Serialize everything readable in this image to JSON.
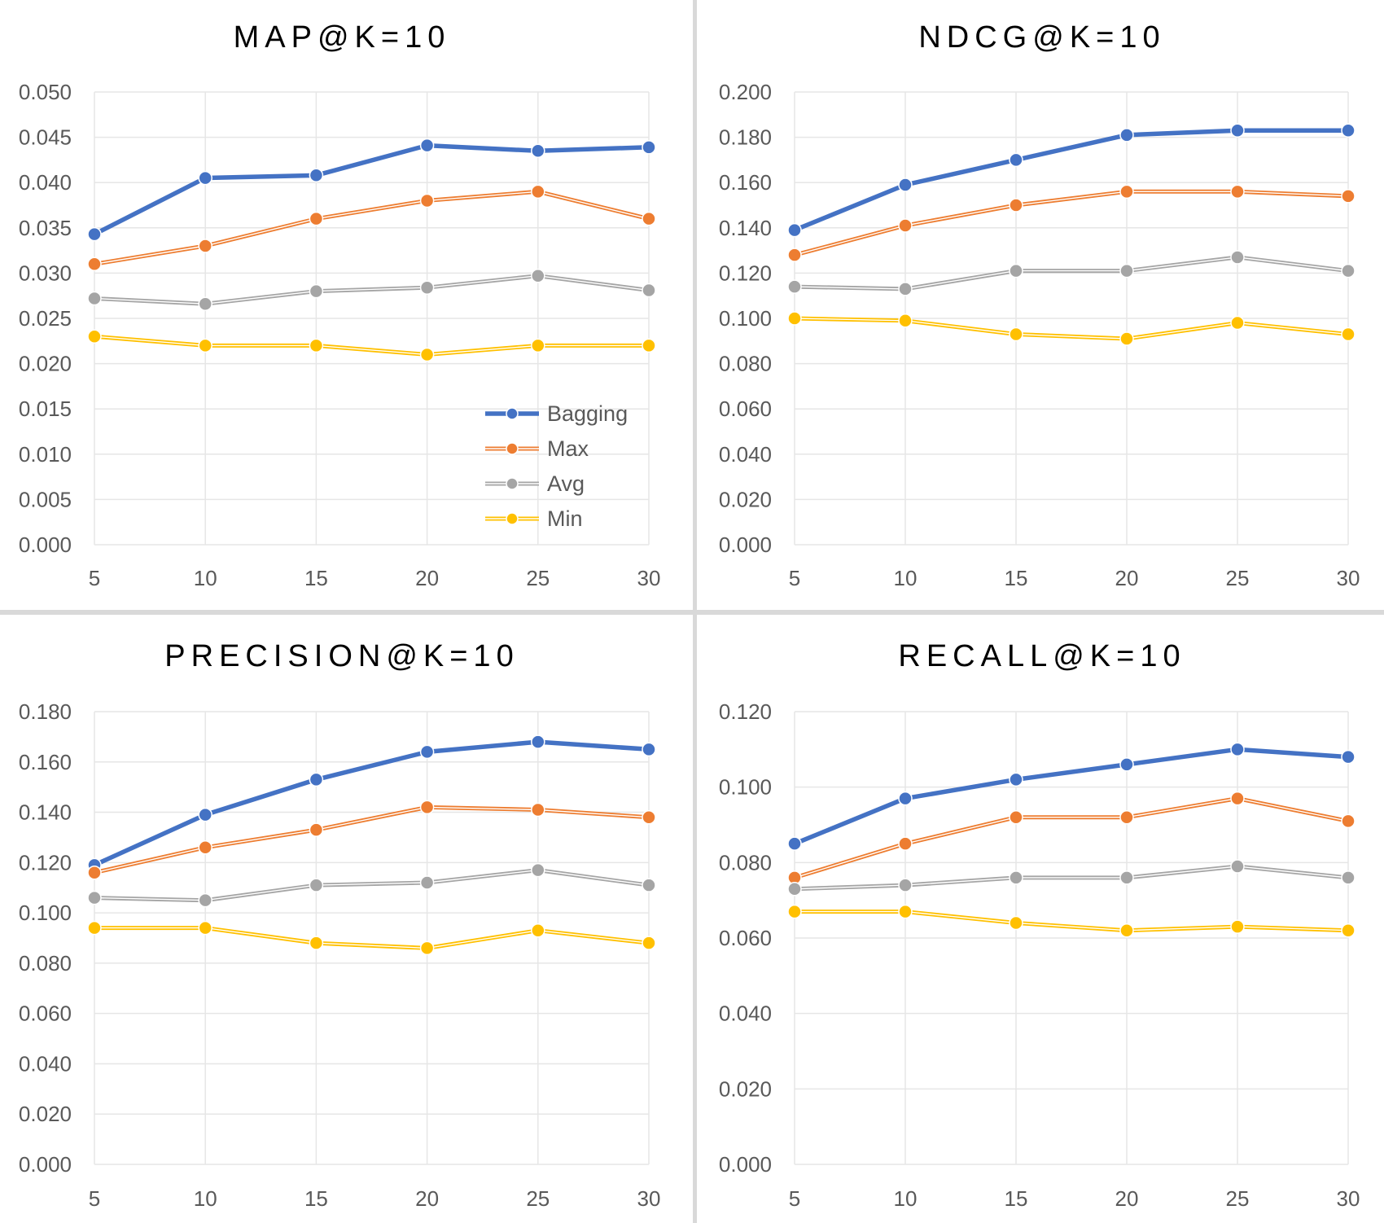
{
  "colors": {
    "Bagging": "#4472c4",
    "Max": "#ed7d31",
    "Avg": "#a5a5a5",
    "Min": "#ffc000",
    "grid": "#e6e6e6",
    "divider": "#d9d9d9"
  },
  "chart_data": [
    {
      "type": "line",
      "title": "MAP@K=10",
      "x": [
        5,
        10,
        15,
        20,
        25,
        30
      ],
      "xticks": [
        "5",
        "10",
        "15",
        "20",
        "25",
        "30"
      ],
      "ylim": [
        0,
        0.05
      ],
      "yticks": [
        "0.000",
        "0.005",
        "0.010",
        "0.015",
        "0.020",
        "0.025",
        "0.030",
        "0.035",
        "0.040",
        "0.045",
        "0.050"
      ],
      "legend": {
        "position": "bottom-right",
        "entries": [
          "Bagging",
          "Max",
          "Avg",
          "Min"
        ]
      },
      "series": [
        {
          "name": "Bagging",
          "values": [
            0.0343,
            0.0405,
            0.0408,
            0.0441,
            0.0435,
            0.0439
          ]
        },
        {
          "name": "Max",
          "values": [
            0.031,
            0.033,
            0.036,
            0.038,
            0.039,
            0.036
          ]
        },
        {
          "name": "Avg",
          "values": [
            0.0272,
            0.0266,
            0.028,
            0.0284,
            0.0297,
            0.0281
          ]
        },
        {
          "name": "Min",
          "values": [
            0.023,
            0.022,
            0.022,
            0.021,
            0.022,
            0.022
          ]
        }
      ]
    },
    {
      "type": "line",
      "title": "NDCG@K=10",
      "x": [
        5,
        10,
        15,
        20,
        25,
        30
      ],
      "xticks": [
        "5",
        "10",
        "15",
        "20",
        "25",
        "30"
      ],
      "ylim": [
        0,
        0.2
      ],
      "yticks": [
        "0.000",
        "0.020",
        "0.040",
        "0.060",
        "0.080",
        "0.100",
        "0.120",
        "0.140",
        "0.160",
        "0.180",
        "0.200"
      ],
      "series": [
        {
          "name": "Bagging",
          "values": [
            0.139,
            0.159,
            0.17,
            0.181,
            0.183,
            0.183
          ]
        },
        {
          "name": "Max",
          "values": [
            0.128,
            0.141,
            0.15,
            0.156,
            0.156,
            0.154
          ]
        },
        {
          "name": "Avg",
          "values": [
            0.114,
            0.113,
            0.121,
            0.121,
            0.127,
            0.121
          ]
        },
        {
          "name": "Min",
          "values": [
            0.1,
            0.099,
            0.093,
            0.091,
            0.098,
            0.093
          ]
        }
      ]
    },
    {
      "type": "line",
      "title": "PRECISION@K=10",
      "x": [
        5,
        10,
        15,
        20,
        25,
        30
      ],
      "xticks": [
        "5",
        "10",
        "15",
        "20",
        "25",
        "30"
      ],
      "ylim": [
        0,
        0.18
      ],
      "yticks": [
        "0.000",
        "0.020",
        "0.040",
        "0.060",
        "0.080",
        "0.100",
        "0.120",
        "0.140",
        "0.160",
        "0.180"
      ],
      "series": [
        {
          "name": "Bagging",
          "values": [
            0.119,
            0.139,
            0.153,
            0.164,
            0.168,
            0.165
          ]
        },
        {
          "name": "Max",
          "values": [
            0.116,
            0.126,
            0.133,
            0.142,
            0.141,
            0.138
          ]
        },
        {
          "name": "Avg",
          "values": [
            0.106,
            0.105,
            0.111,
            0.112,
            0.117,
            0.111
          ]
        },
        {
          "name": "Min",
          "values": [
            0.094,
            0.094,
            0.088,
            0.086,
            0.093,
            0.088
          ]
        }
      ]
    },
    {
      "type": "line",
      "title": "RECALL@K=10",
      "x": [
        5,
        10,
        15,
        20,
        25,
        30
      ],
      "xticks": [
        "5",
        "10",
        "15",
        "20",
        "25",
        "30"
      ],
      "ylim": [
        0,
        0.12
      ],
      "yticks": [
        "0.000",
        "0.020",
        "0.040",
        "0.060",
        "0.080",
        "0.100",
        "0.120"
      ],
      "series": [
        {
          "name": "Bagging",
          "values": [
            0.085,
            0.097,
            0.102,
            0.106,
            0.11,
            0.108
          ]
        },
        {
          "name": "Max",
          "values": [
            0.076,
            0.085,
            0.092,
            0.092,
            0.097,
            0.091
          ]
        },
        {
          "name": "Avg",
          "values": [
            0.073,
            0.074,
            0.076,
            0.076,
            0.079,
            0.076
          ]
        },
        {
          "name": "Min",
          "values": [
            0.067,
            0.067,
            0.064,
            0.062,
            0.063,
            0.062
          ]
        }
      ]
    }
  ]
}
